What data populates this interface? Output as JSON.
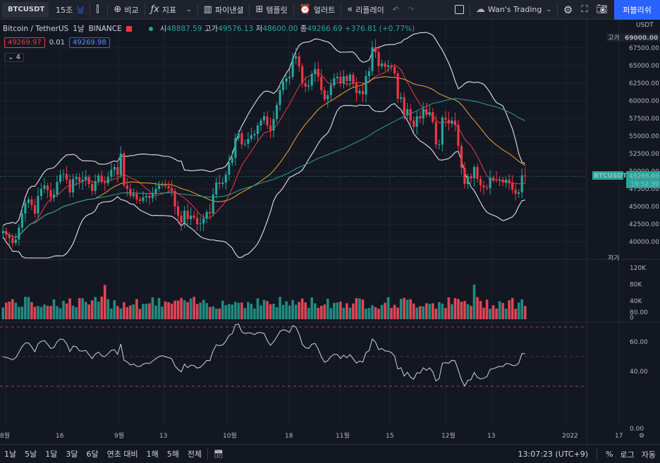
{
  "toolbar": {
    "symbol": "BTCUSDT",
    "interval_a": "15조",
    "interval_b": "날",
    "compare": "비교",
    "indicators": "지표",
    "financials": "파이낸셜",
    "templates": "템플릿",
    "alert": "얼러트",
    "replay": "리플레이",
    "layout_name": "Wan's Trading",
    "publish": "퍼블리쉬"
  },
  "legend": {
    "title": "Bitcoin / TetherUS",
    "interval": "1날",
    "exchange": "BINANCE",
    "open_label": "시",
    "open": "48887.59",
    "high_label": "고가",
    "high": "49576.13",
    "low_label": "저",
    "low": "48600.00",
    "close_label": "종",
    "close": "49266.69",
    "change": "+376.81 (+0.77%)",
    "sell": "49269.97",
    "spread": "0.01",
    "buy": "49269.98",
    "indicator_count": "4"
  },
  "price_axis": {
    "currency": "USDT",
    "high_tag_label": "고가",
    "high_tag_value": "69000.00",
    "low_tag_label": "저가",
    "ticks": [
      "67500.00",
      "65000.00",
      "62500.00",
      "60000.00",
      "57500.00",
      "55000.00",
      "52500.00",
      "50000.00",
      "47500.00",
      "45000.00",
      "42500.00",
      "40000.00"
    ],
    "last_symbol": "BTCUSDT",
    "last_price": "49266.69",
    "countdown": "19:52:39"
  },
  "volume_axis": {
    "ticks": [
      "120K",
      "80K",
      "40K",
      "0"
    ]
  },
  "rsi_axis": {
    "ticks": [
      "80.00",
      "60.00",
      "40.00",
      "0.00"
    ]
  },
  "time_axis": {
    "labels": [
      "8월",
      "16",
      "9월",
      "13",
      "10월",
      "18",
      "11월",
      "15",
      "12월",
      "13",
      "2022",
      "17"
    ]
  },
  "bottom_bar": {
    "ranges": [
      "1날",
      "5날",
      "1달",
      "3달",
      "6달",
      "연초 대비",
      "1해",
      "5해",
      "전체"
    ],
    "clock": "13:07:23 (UTC+9)",
    "percent": "%",
    "log": "로그",
    "auto": "자동"
  },
  "colors": {
    "up": "#26a69a",
    "down": "#f23645",
    "accent": "#2962ff",
    "bg": "#131722"
  },
  "chart_data": {
    "type": "line",
    "title": "Bitcoin / TetherUS",
    "candles_close": [
      41500,
      41000,
      40500,
      39800,
      40300,
      42000,
      44000,
      45500,
      46000,
      45200,
      44000,
      46500,
      47500,
      48000,
      47300,
      46300,
      46700,
      48500,
      49500,
      49600,
      48800,
      47000,
      48900,
      49200,
      48500,
      48800,
      49200,
      48200,
      47200,
      48600,
      49400,
      48500,
      48300,
      49200,
      50200,
      50600,
      49500,
      52500,
      48000,
      47500,
      46500,
      46800,
      46000,
      45800,
      46300,
      46500,
      46200,
      46800,
      47500,
      48000,
      48200,
      47900,
      47600,
      47200,
      45000,
      43700,
      42700,
      44400,
      43200,
      43700,
      43400,
      42500,
      42600,
      43300,
      44200,
      44000,
      46700,
      48400,
      48200,
      48400,
      49500,
      51200,
      51900,
      54700,
      55400,
      53800,
      53900,
      54600,
      55100,
      55300,
      56500,
      57200,
      57800,
      56500,
      55800,
      57400,
      59400,
      61500,
      62700,
      63200,
      63400,
      66000,
      66300,
      64900,
      62500,
      62000,
      62200,
      63800,
      64500,
      63400,
      61500,
      60200,
      60800,
      62200,
      63200,
      63400,
      62500,
      63500,
      62800,
      63700,
      62500,
      61100,
      61400,
      60900,
      63500,
      64200,
      67600,
      66900,
      64900,
      65300,
      64800,
      65000,
      64800,
      63900,
      60300,
      60500,
      58000,
      58800,
      57200,
      56300,
      57800,
      57500,
      58800,
      58000,
      58400,
      57000,
      53800,
      53800,
      57600,
      57300,
      56800,
      57200,
      56600,
      53600,
      50500,
      48200,
      49300,
      49000,
      50600,
      48900,
      48000,
      47700,
      47600,
      49100,
      48800,
      48700,
      48800,
      48400,
      48800,
      48300,
      47400,
      46800,
      47000,
      49400,
      49266
    ]
  }
}
